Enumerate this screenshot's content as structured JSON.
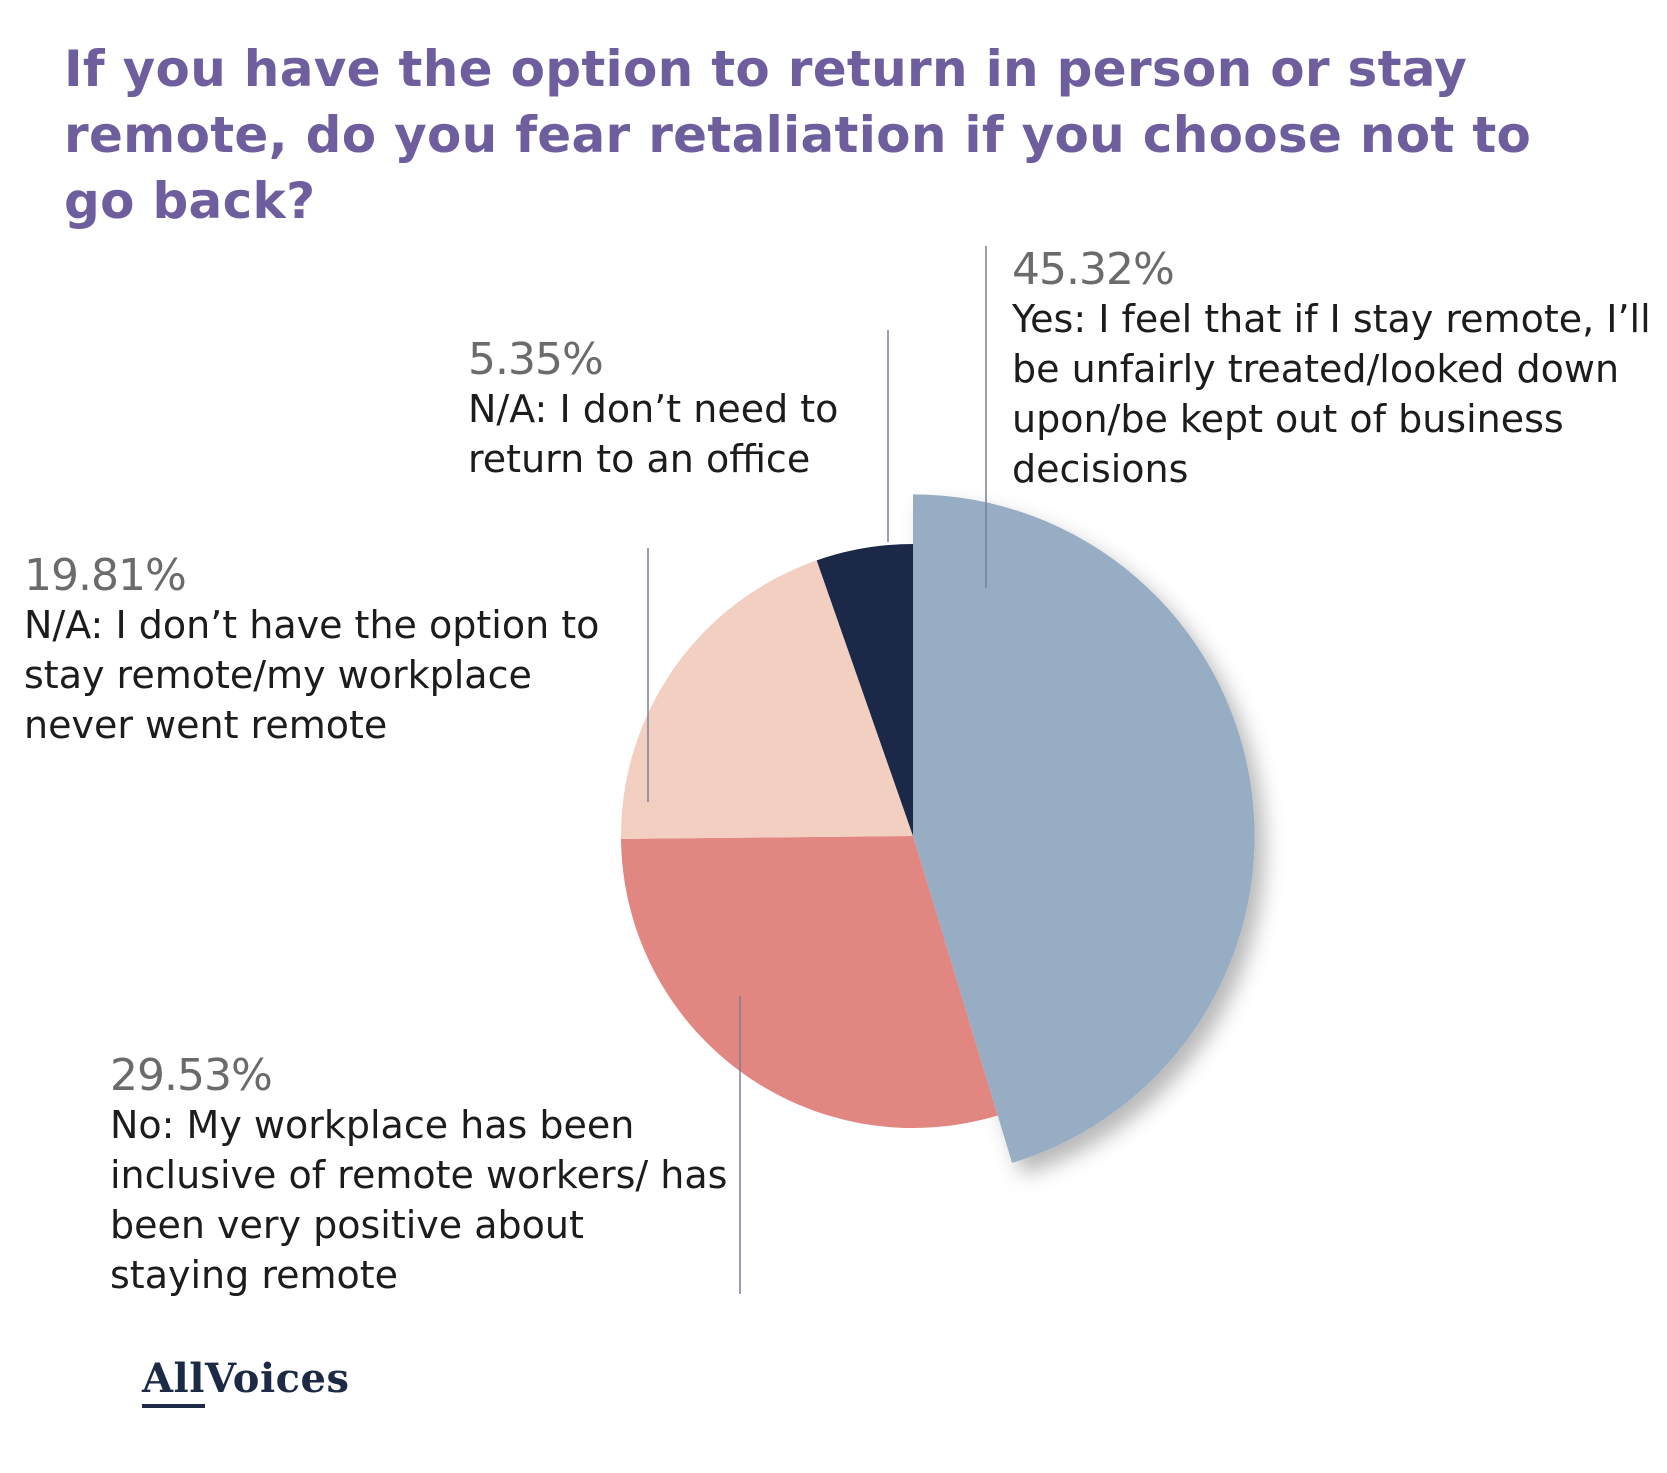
{
  "chart_data": {
    "type": "pie",
    "title": "If you have the option to return in person or stay remote, do you fear retaliation if you choose not to go back?",
    "slices": [
      {
        "percent_label": "45.32%",
        "value": 45.32,
        "label": "Yes: I feel that if I stay remote, I’ll be unfairly treated/looked down upon/be kept out of business decisions",
        "color": "#96adc4",
        "exploded": true
      },
      {
        "percent_label": "29.53%",
        "value": 29.53,
        "label": "No: My workplace has been inclusive of remote workers/ has been very positive about staying remote",
        "color": "#e18681",
        "exploded": false
      },
      {
        "percent_label": "19.81%",
        "value": 19.81,
        "label": "N/A: I don’t have the option to stay remote/my workplace never went remote",
        "color": "#f3cfc2",
        "exploded": false
      },
      {
        "percent_label": "5.35%",
        "value": 5.35,
        "label": "N/A: I don’t need to return to an office",
        "color": "#1c2848",
        "exploded": false
      }
    ]
  },
  "brand": {
    "logo_part1": "All",
    "logo_part2": "Voices"
  },
  "colors": {
    "title": "#6e5e9e",
    "percent_text": "#6b6b6b",
    "label_text": "#1c1c1c",
    "leader_line": "#7a7f96",
    "logo": "#1c2a45"
  }
}
